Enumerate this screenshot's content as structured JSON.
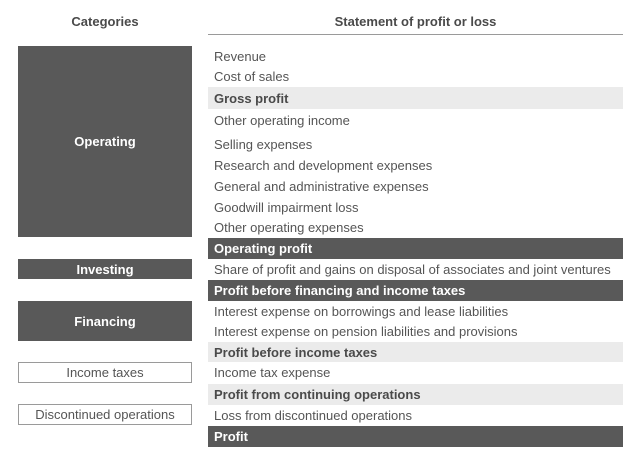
{
  "headers": {
    "categories": "Categories",
    "statement": "Statement of profit or loss"
  },
  "categories": {
    "operating": "Operating",
    "investing": "Investing",
    "financing": "Financing",
    "income_taxes": "Income taxes",
    "discontinued": "Discontinued operations"
  },
  "statement": {
    "revenue": "Revenue",
    "cost_of_sales": "Cost of sales",
    "gross_profit": "Gross profit",
    "other_operating_income": "Other operating income",
    "selling_expenses": "Selling expenses",
    "rnd_expenses": "Research and development expenses",
    "ga_expenses": "General and administrative expenses",
    "goodwill_impairment": "Goodwill impairment loss",
    "other_operating_expenses": "Other operating expenses",
    "operating_profit": "Operating profit",
    "share_of_profit": "Share of profit and gains on disposal of associates and joint ventures",
    "profit_before_financing": "Profit before financing and income taxes",
    "interest_borrowings": "Interest expense on borrowings and lease liabilities",
    "interest_pension": "Interest expense on pension liabilities and provisions",
    "profit_before_taxes": "Profit before income taxes",
    "income_tax_expense": "Income tax expense",
    "profit_continuing": "Profit from continuing operations",
    "loss_discontinued": "Loss from discontinued operations",
    "profit": "Profit"
  }
}
